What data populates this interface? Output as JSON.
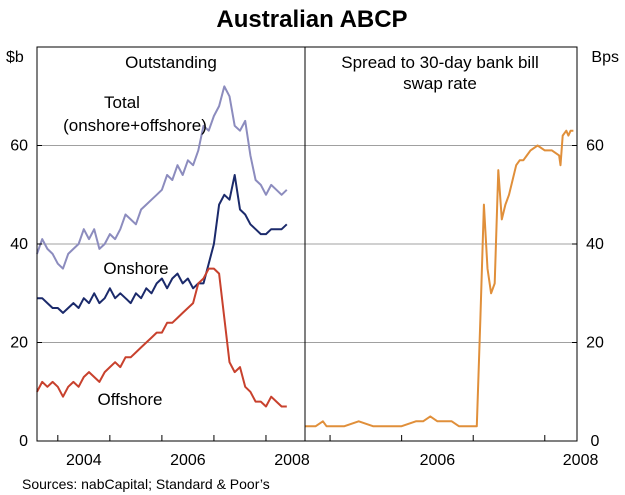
{
  "chart_data": [
    {
      "type": "line",
      "panel": "left",
      "title": "Australian ABCP",
      "panel_title": "Outstanding",
      "ylabel": "$b",
      "ylim": [
        0,
        80
      ],
      "yticks": [
        "0",
        "20",
        "40",
        "60"
      ],
      "xlim": [
        2003.6,
        2008.75
      ],
      "xticks": [
        "2004",
        "2006",
        "2008"
      ],
      "grid": true,
      "series": [
        {
          "name": "Total",
          "sublabel": "(onshore+offshore)",
          "color": "#8c8cbe",
          "x": [
            2003.6,
            2003.7,
            2003.8,
            2003.9,
            2004.0,
            2004.1,
            2004.2,
            2004.3,
            2004.4,
            2004.5,
            2004.6,
            2004.7,
            2004.8,
            2004.9,
            2005.0,
            2005.1,
            2005.2,
            2005.3,
            2005.4,
            2005.5,
            2005.6,
            2005.7,
            2005.8,
            2005.9,
            2006.0,
            2006.1,
            2006.2,
            2006.3,
            2006.4,
            2006.5,
            2006.6,
            2006.7,
            2006.8,
            2006.9,
            2007.0,
            2007.1,
            2007.2,
            2007.3,
            2007.4,
            2007.5,
            2007.6,
            2007.7,
            2007.8,
            2007.9,
            2008.0,
            2008.1,
            2008.2,
            2008.3,
            2008.4
          ],
          "values": [
            38,
            41,
            39,
            38,
            36,
            35,
            38,
            39,
            40,
            43,
            41,
            43,
            39,
            40,
            42,
            41,
            43,
            46,
            45,
            44,
            47,
            48,
            49,
            50,
            51,
            54,
            53,
            56,
            54,
            57,
            56,
            59,
            64,
            63,
            66,
            68,
            72,
            70,
            64,
            63,
            65,
            58,
            53,
            52,
            50,
            52,
            51,
            50,
            51
          ]
        },
        {
          "name": "Onshore",
          "color": "#1b2a6b",
          "x": [
            2003.6,
            2003.7,
            2003.8,
            2003.9,
            2004.0,
            2004.1,
            2004.2,
            2004.3,
            2004.4,
            2004.5,
            2004.6,
            2004.7,
            2004.8,
            2004.9,
            2005.0,
            2005.1,
            2005.2,
            2005.3,
            2005.4,
            2005.5,
            2005.6,
            2005.7,
            2005.8,
            2005.9,
            2006.0,
            2006.1,
            2006.2,
            2006.3,
            2006.4,
            2006.5,
            2006.6,
            2006.7,
            2006.8,
            2006.9,
            2007.0,
            2007.1,
            2007.2,
            2007.3,
            2007.4,
            2007.5,
            2007.6,
            2007.7,
            2007.8,
            2007.9,
            2008.0,
            2008.1,
            2008.2,
            2008.3,
            2008.4
          ],
          "values": [
            29,
            29,
            28,
            27,
            27,
            26,
            27,
            28,
            27,
            29,
            28,
            30,
            28,
            29,
            31,
            29,
            30,
            29,
            28,
            30,
            29,
            31,
            30,
            32,
            33,
            31,
            33,
            34,
            32,
            33,
            31,
            32,
            32,
            36,
            40,
            48,
            50,
            49,
            54,
            47,
            46,
            44,
            43,
            42,
            42,
            43,
            43,
            43,
            44
          ]
        },
        {
          "name": "Offshore",
          "color": "#c8412d",
          "x": [
            2003.6,
            2003.7,
            2003.8,
            2003.9,
            2004.0,
            2004.1,
            2004.2,
            2004.3,
            2004.4,
            2004.5,
            2004.6,
            2004.7,
            2004.8,
            2004.9,
            2005.0,
            2005.1,
            2005.2,
            2005.3,
            2005.4,
            2005.5,
            2005.6,
            2005.7,
            2005.8,
            2005.9,
            2006.0,
            2006.1,
            2006.2,
            2006.3,
            2006.4,
            2006.5,
            2006.6,
            2006.7,
            2006.8,
            2006.9,
            2007.0,
            2007.1,
            2007.2,
            2007.3,
            2007.4,
            2007.5,
            2007.6,
            2007.7,
            2007.8,
            2007.9,
            2008.0,
            2008.1,
            2008.2,
            2008.3,
            2008.4
          ],
          "values": [
            10,
            12,
            11,
            12,
            11,
            9,
            11,
            12,
            11,
            13,
            14,
            13,
            12,
            14,
            15,
            16,
            15,
            17,
            17,
            18,
            19,
            20,
            21,
            22,
            22,
            24,
            24,
            25,
            26,
            27,
            28,
            32,
            33,
            35,
            35,
            34,
            25,
            16,
            14,
            15,
            11,
            10,
            8,
            8,
            7,
            9,
            8,
            7,
            7
          ]
        }
      ],
      "annotations": [
        {
          "text": "Total",
          "series": "Total"
        },
        {
          "text": "(onshore+offshore)",
          "series": "Total"
        },
        {
          "text": "Onshore",
          "series": "Onshore"
        },
        {
          "text": "Offshore",
          "series": "Offshore"
        }
      ]
    },
    {
      "type": "line",
      "panel": "right",
      "panel_title_line1": "Spread to 30-day bank bill",
      "panel_title_line2": "swap rate",
      "ylabel": "Bps",
      "ylim": [
        0,
        80
      ],
      "yticks": [
        "0",
        "20",
        "40",
        "60"
      ],
      "xlim": [
        2004.65,
        2008.45
      ],
      "xticks": [
        "2006",
        "2008"
      ],
      "grid": true,
      "series": [
        {
          "color": "#e08f3a",
          "x": [
            2004.65,
            2004.8,
            2004.9,
            2004.95,
            2005.0,
            2005.2,
            2005.4,
            2005.6,
            2005.8,
            2006.0,
            2006.2,
            2006.3,
            2006.4,
            2006.5,
            2006.6,
            2006.7,
            2006.8,
            2006.9,
            2006.98,
            2007.05,
            2007.1,
            2007.15,
            2007.2,
            2007.25,
            2007.3,
            2007.35,
            2007.4,
            2007.45,
            2007.5,
            2007.55,
            2007.6,
            2007.65,
            2007.7,
            2007.75,
            2007.8,
            2007.9,
            2008.0,
            2008.1,
            2008.2,
            2008.22,
            2008.25,
            2008.3,
            2008.33,
            2008.36,
            2008.4
          ],
          "values": [
            3,
            3,
            4,
            3,
            3,
            3,
            4,
            3,
            3,
            3,
            4,
            4,
            5,
            4,
            4,
            4,
            3,
            3,
            3,
            3,
            25,
            48,
            35,
            30,
            32,
            55,
            45,
            48,
            50,
            53,
            56,
            57,
            57,
            58,
            59,
            60,
            59,
            59,
            58,
            56,
            62,
            63,
            62,
            63,
            63
          ]
        }
      ]
    }
  ],
  "source": "Sources: nabCapital; Standard & Poor’s",
  "colors": {
    "grid": "#a0a0a0",
    "border": "#000000",
    "total": "#8c8cbe",
    "onshore": "#1b2a6b",
    "offshore": "#c8412d",
    "spread": "#e08f3a"
  }
}
